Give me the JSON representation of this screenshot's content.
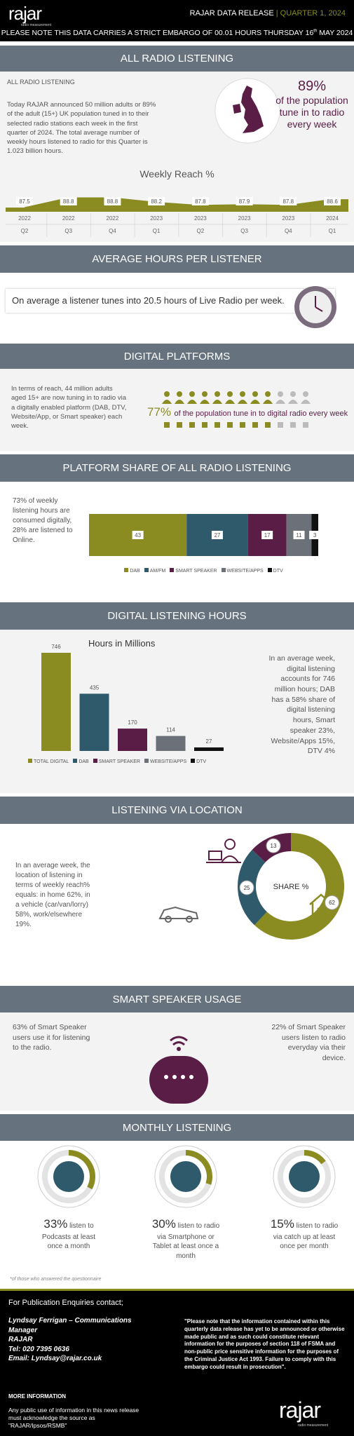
{
  "header": {
    "logo": "rajar",
    "logo_tagline": "radio measurement",
    "release": "RAJAR DATA RELEASE",
    "separator": "|",
    "quarter": "QUARTER 1, 2024",
    "embargo": "PLEASE NOTE THIS DATA CARRIES A STRICT EMBARGO OF 00.01 HOURS THURSDAY 16",
    "embargo_sup": "th",
    "embargo_end": " MAY 2024"
  },
  "all_radio": {
    "heading": "ALL RADIO LISTENING",
    "subheading": "ALL RADIO LISTENING",
    "body": "Today RAJAR announced 50 million adults or 89% of the adult (15+) UK population tuned in to their selected radio stations each week in the first quarter of 2024.  The total average number of weekly hours listened to radio for this Quarter is 1.023 billion hours.",
    "stat": "89%",
    "stat_text": "of the population tune in to radio every week",
    "chart": {
      "type": "area",
      "title": "Weekly Reach %",
      "years": [
        "2022",
        "2022",
        "2022",
        "2023",
        "2023",
        "2023",
        "2023",
        "2024"
      ],
      "quarters": [
        "Q2",
        "Q3",
        "Q4",
        "Q1",
        "Q2",
        "Q3",
        "Q4",
        "Q1"
      ],
      "values": [
        87.5,
        88.8,
        88.8,
        88.2,
        87.8,
        87.9,
        87.8,
        88.6
      ],
      "color": "#8a8c22"
    }
  },
  "avg_hours": {
    "heading": "AVERAGE HOURS PER LISTENER",
    "text": "On average a listener tunes into 20.5 hours of Live Radio per week."
  },
  "digital_platforms": {
    "heading": "DIGITAL PLATFORMS",
    "body": "In terms of reach, 44 million adults aged 15+ are now tuning in to radio via a digitally enabled platform (DAB, DTV, Website/App, or Smart speaker) each week.",
    "stat": "77%",
    "stat_text": "of the population tune in to digital radio every week"
  },
  "platform_share": {
    "heading": "PLATFORM SHARE OF ALL RADIO LISTENING",
    "body": "73% of weekly listening hours are consumed digitally, 28% are listened to Online.",
    "chart": {
      "type": "stacked_bar",
      "series": [
        {
          "name": "DAB",
          "color": "#8a8c22",
          "values": [
            43
          ]
        },
        {
          "name": "AM/FM",
          "color": "#2f5a6b",
          "values": [
            27
          ]
        },
        {
          "name": "SMART SPEAKER",
          "color": "#5a1d45",
          "values": [
            17
          ]
        },
        {
          "name": "WEBSITE/APPS",
          "color": "#6b7079",
          "values": [
            11
          ]
        },
        {
          "name": "DTV",
          "color": "#111111",
          "values": [
            3
          ]
        }
      ]
    }
  },
  "digital_hours": {
    "heading": "DIGITAL LISTENING HOURS",
    "body": "In an average week, digital listening accounts for 746 million hours; DAB has a 58% share of digital listening hours, Smart speaker 23%, Website/Apps 15%, DTV 4%",
    "chart": {
      "type": "bar",
      "title": "Hours in Millions",
      "categories": [
        "TOTAL DIGITAL",
        "DAB",
        "SMART SPEAKER",
        "WEBSITE/APPS",
        "DTV"
      ],
      "values": [
        746,
        435,
        170,
        114,
        27
      ],
      "colors": [
        "#8a8c22",
        "#2f5a6b",
        "#5a1d45",
        "#6b7079",
        "#111111"
      ]
    }
  },
  "location": {
    "heading": "LISTENING VIA LOCATION",
    "body": "In an average week, the location of listening in terms of weekly reach% equals: in home 62%, in a vehicle (car/van/lorry) 58%, work/elsewhere 19%.",
    "chart": {
      "type": "donut",
      "center_label": "SHARE %",
      "values": [
        62,
        25,
        13
      ],
      "colors": [
        "#8a8c22",
        "#2f5a6b",
        "#5a1d45"
      ]
    }
  },
  "smart_speaker": {
    "heading": "SMART SPEAKER USAGE",
    "left": "63% of Smart Speaker users use it for listening to the radio.",
    "right": "22% of Smart Speaker users listen to radio everyday via their device."
  },
  "monthly": {
    "heading": "MONTHLY LISTENING",
    "values": [
      33,
      30,
      15
    ],
    "value_labels": [
      "33%",
      "30%",
      "15%"
    ],
    "texts": [
      "listen to Podcasts at least once a month",
      "listen to radio via Smartphone or Tablet at least once a month",
      "listen to radio via catch up at least once per month"
    ],
    "color": "#8a8c22",
    "footnote": "*of those who answered the questionnaire"
  },
  "footer": {
    "enquiries": "For Publication Enquiries contact;",
    "contact": [
      "Lyndsay Ferrigan – Communications Manager",
      "RAJAR",
      "Tel: 020 7395 0636",
      "Email: Lyndsay@rajar.co.uk"
    ],
    "notice": "\"Please note that the information contained within this quarterly data release has yet to be announced or otherwise made public and as such could constitute relevant information for the purposes of section 118 of FSMA and non-public price sensitive information for the purposes of the Criminal Justice Act 1993. Failure to comply with this embargo could result in prosecution\".",
    "more_title": "MORE INFORMATION",
    "more_text": "Any public use of information in this news release must acknowledge the source as \"RAJAR/Ipsos/RSMB\"",
    "logo": "rajar",
    "logo_tagline": "radio measurement"
  }
}
